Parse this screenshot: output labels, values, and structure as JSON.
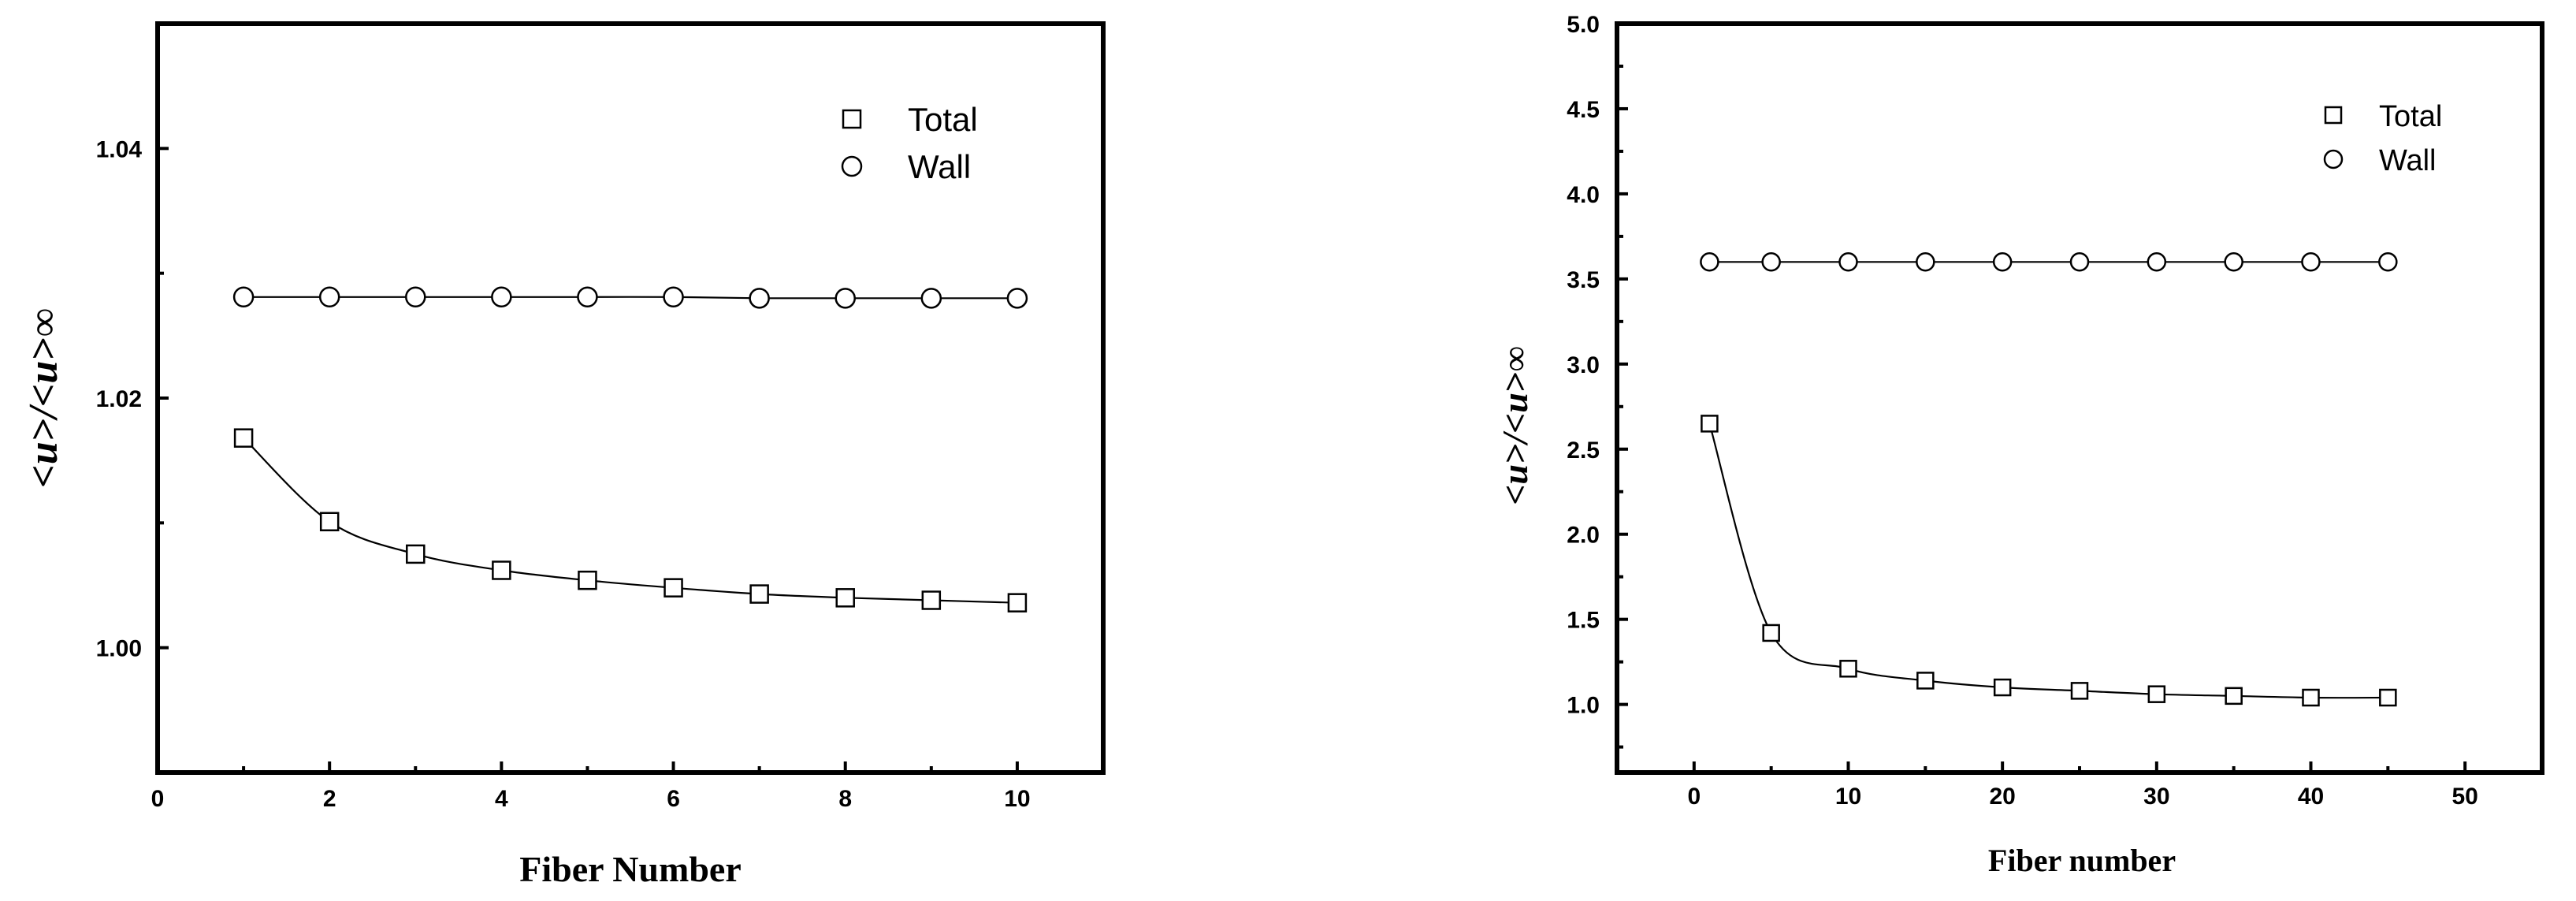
{
  "chart_data": [
    {
      "type": "scatter",
      "title": "",
      "xlabel": "Fiber Number",
      "ylabel": "<u>/<u>∞",
      "xlim": [
        0,
        11
      ],
      "ylim": [
        0.99,
        1.05
      ],
      "x_ticks": [
        0,
        2,
        4,
        6,
        8,
        10
      ],
      "x_tick_labels": [
        "0",
        "2",
        "4",
        "6",
        "8",
        "10"
      ],
      "y_ticks": [
        1.0,
        1.02,
        1.04
      ],
      "y_tick_labels": [
        "1.00",
        "1.02",
        "1.04"
      ],
      "grid": false,
      "legend_position": "top-right",
      "series": [
        {
          "name": "Total",
          "marker": "square",
          "x": [
            1,
            2,
            3,
            4,
            5,
            6,
            7,
            8,
            9,
            10
          ],
          "y": [
            1.0168,
            1.0101,
            1.0075,
            1.0062,
            1.0054,
            1.0048,
            1.0043,
            1.004,
            1.0038,
            1.0036
          ]
        },
        {
          "name": "Wall",
          "marker": "circle",
          "x": [
            1,
            2,
            3,
            4,
            5,
            6,
            7,
            8,
            9,
            10
          ],
          "y": [
            1.0281,
            1.0281,
            1.0281,
            1.0281,
            1.0281,
            1.0281,
            1.028,
            1.028,
            1.028,
            1.028
          ]
        }
      ]
    },
    {
      "type": "scatter",
      "title": "",
      "xlabel": "Fiber number",
      "ylabel": "<u>/<u>∞",
      "xlim": [
        -5,
        55
      ],
      "ylim": [
        0.6,
        5.0
      ],
      "x_ticks": [
        0,
        10,
        20,
        30,
        40,
        50
      ],
      "x_tick_labels": [
        "0",
        "10",
        "20",
        "30",
        "40",
        "50"
      ],
      "y_ticks": [
        1.0,
        1.5,
        2.0,
        2.5,
        3.0,
        3.5,
        4.0,
        4.5,
        5.0
      ],
      "y_tick_labels": [
        "1.0",
        "1.5",
        "2.0",
        "2.5",
        "3.0",
        "3.5",
        "4.0",
        "4.5",
        "5.0"
      ],
      "grid": false,
      "legend_position": "top-right",
      "series": [
        {
          "name": "Total",
          "marker": "square",
          "x": [
            1,
            5,
            10,
            15,
            20,
            25,
            30,
            35,
            40,
            45
          ],
          "y": [
            2.65,
            1.42,
            1.21,
            1.14,
            1.1,
            1.08,
            1.06,
            1.05,
            1.04,
            1.04
          ]
        },
        {
          "name": "Wall",
          "marker": "circle",
          "x": [
            1,
            5,
            10,
            15,
            20,
            25,
            30,
            35,
            40,
            45
          ],
          "y": [
            3.6,
            3.6,
            3.6,
            3.6,
            3.6,
            3.6,
            3.6,
            3.6,
            3.6,
            3.6
          ]
        }
      ]
    }
  ]
}
